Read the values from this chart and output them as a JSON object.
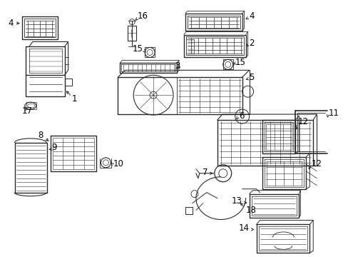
{
  "bg_color": "#ffffff",
  "line_color": "#2a2a2a",
  "label_color": "#000000",
  "figsize": [
    4.89,
    3.6
  ],
  "dpi": 100,
  "font_size": 8.5
}
